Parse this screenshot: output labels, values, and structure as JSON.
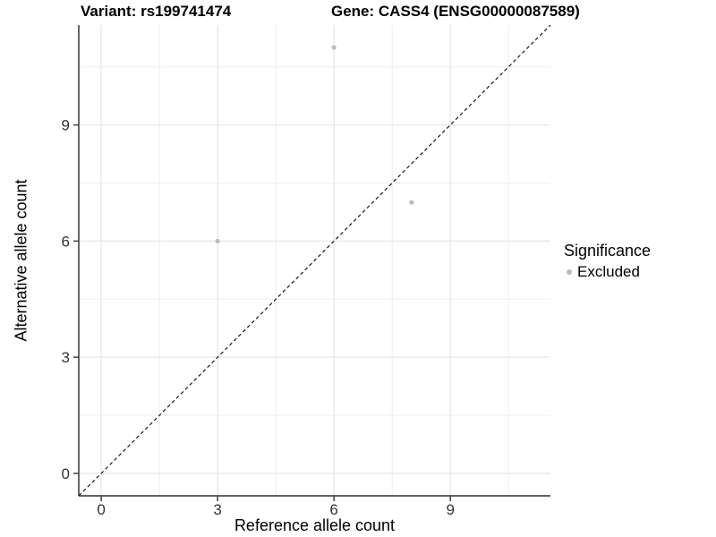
{
  "titles": {
    "variant": "Variant: rs199741474",
    "gene": "Gene: CASS4 (ENSG00000087589)"
  },
  "axes": {
    "x_label": "Reference allele count",
    "y_label": "Alternative allele count"
  },
  "legend": {
    "title": "Significance",
    "items": [
      {
        "label": "Excluded",
        "color": "#bcbcbc"
      }
    ],
    "position": "right"
  },
  "chart_data": {
    "type": "scatter",
    "title": "Variant: rs199741474   Gene: CASS4 (ENSG00000087589)",
    "xlabel": "Reference allele count",
    "ylabel": "Alternative allele count",
    "xlim": [
      -0.58,
      11.58
    ],
    "ylim": [
      -0.58,
      11.58
    ],
    "x_ticks": [
      0,
      3,
      6,
      9
    ],
    "y_ticks": [
      0,
      3,
      6,
      9
    ],
    "minor_gridlines": [
      1.5,
      4.5,
      7.5,
      10.5
    ],
    "grid": "on",
    "series": [
      {
        "name": "Excluded",
        "color": "#bcbcbc",
        "points": [
          {
            "x": 3,
            "y": 6
          },
          {
            "x": 6,
            "y": 11
          },
          {
            "x": 8,
            "y": 7
          }
        ]
      }
    ],
    "reference_line": {
      "type": "identity y=x",
      "style": "dashed",
      "color": "#1a1a1a"
    },
    "legend_position": "right",
    "colors": {
      "major_gridline": "#e7e7e7",
      "minor_gridline": "#f0f0f0",
      "axis_line": "#4d4d4d",
      "tick_label": "#333333"
    }
  }
}
